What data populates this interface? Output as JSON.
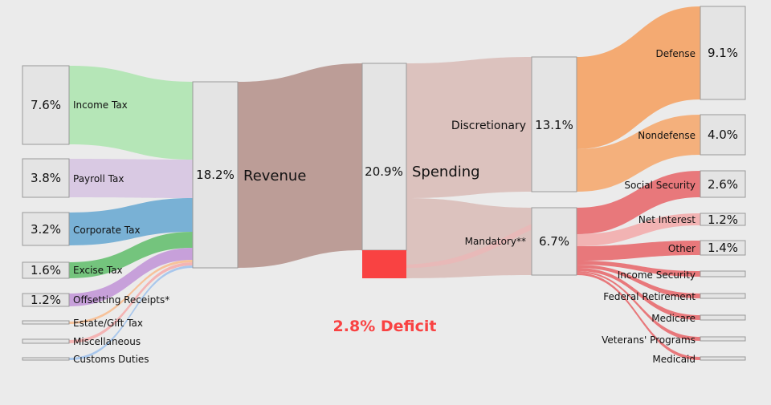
{
  "colors": {
    "background": "#ebebeb",
    "income": "#b5e6b7",
    "payroll": "#d9c9e3",
    "corporate": "#79b1d5",
    "excise": "#74c47d",
    "offsetting": "#c7a0da",
    "estate": "#f7c29a",
    "misc": "#f4b4b4",
    "customs": "#a9c7ec",
    "revenue": "#bc9d97",
    "spending": "#dcc2be",
    "discretionary": "#f4aa72",
    "mandatory": "#e8787b",
    "mandatory_light": "#f2b3b3",
    "deficit": "#f94242",
    "box_fill": "#e4e4e4",
    "box_stroke": "#9a9a9a"
  },
  "sources": [
    {
      "key": "income",
      "label": "Income Tax",
      "pct": "7.6%"
    },
    {
      "key": "payroll",
      "label": "Payroll Tax",
      "pct": "3.8%"
    },
    {
      "key": "corporate",
      "label": "Corporate Tax",
      "pct": "3.2%"
    },
    {
      "key": "excise",
      "label": "Excise Tax",
      "pct": "1.6%"
    },
    {
      "key": "offsetting",
      "label": "Offsetting Receipts*",
      "pct": "1.2%"
    },
    {
      "key": "estate",
      "label": "Estate/Gift Tax",
      "pct": ""
    },
    {
      "key": "misc",
      "label": "Miscellaneous",
      "pct": ""
    },
    {
      "key": "customs",
      "label": "Customs Duties",
      "pct": ""
    }
  ],
  "revenue": {
    "pct": "18.2%",
    "label": "Revenue"
  },
  "spending": {
    "pct": "20.9%",
    "label": "Spending"
  },
  "deficit": {
    "label": "2.8% Deficit"
  },
  "categories": [
    {
      "key": "discretionary",
      "label": "Discretionary",
      "pct": "13.1%"
    },
    {
      "key": "mandatory",
      "label": "Mandatory**",
      "pct": "6.7%"
    }
  ],
  "discretionary_items": [
    {
      "label": "Defense",
      "pct": "9.1%"
    },
    {
      "label": "Nondefense",
      "pct": "4.0%"
    }
  ],
  "mandatory_items": [
    {
      "label": "Social Security",
      "pct": "2.6%"
    },
    {
      "label": "Net Interest",
      "pct": "1.2%"
    },
    {
      "label": "Other",
      "pct": "1.4%"
    },
    {
      "label": "Income Security",
      "pct": ""
    },
    {
      "label": "Federal Retirement",
      "pct": ""
    },
    {
      "label": "Medicare",
      "pct": ""
    },
    {
      "label": "Veterans' Programs",
      "pct": ""
    },
    {
      "label": "Medicaid",
      "pct": ""
    }
  ]
}
